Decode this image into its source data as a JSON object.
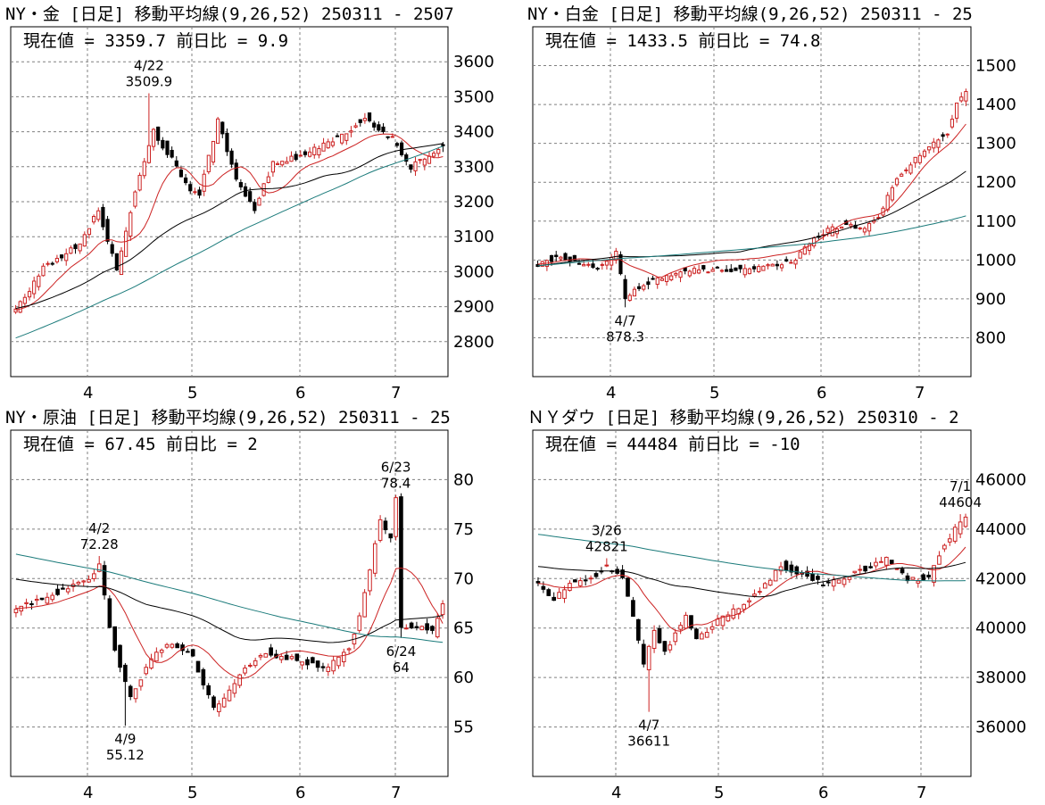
{
  "chart_data": [
    {
      "type": "candlestick",
      "title": "NY・金 [日足]  移動平均線(9,26,52)  250311 - 2507",
      "current_label": "現在値 = 3359.7  前日比 = 9.9",
      "xlabels": [
        "4",
        "5",
        "6",
        "7"
      ],
      "yticks": [
        "2800",
        "2900",
        "3000",
        "3100",
        "3200",
        "3300",
        "3400",
        "3500",
        "3600"
      ],
      "ylim": [
        2700,
        3700
      ],
      "ma_periods": [
        9,
        26,
        52
      ],
      "colors": {
        "up": "#cc2222",
        "down": "#000000",
        "ma9": "#cc2222",
        "ma26": "#000000",
        "ma52": "#1a7a7a"
      },
      "annotations": [
        {
          "label": "4/22",
          "value": "3509.9",
          "date_index": 29,
          "price": 3509.9,
          "position": "above"
        }
      ],
      "anchors": [
        [
          0,
          2890
        ],
        [
          6,
          3010
        ],
        [
          14,
          3080
        ],
        [
          18,
          3180
        ],
        [
          22,
          3000
        ],
        [
          26,
          3230
        ],
        [
          30,
          3400
        ],
        [
          34,
          3320
        ],
        [
          38,
          3230
        ],
        [
          40,
          3220
        ],
        [
          44,
          3430
        ],
        [
          48,
          3260
        ],
        [
          52,
          3180
        ],
        [
          56,
          3310
        ],
        [
          62,
          3330
        ],
        [
          70,
          3380
        ],
        [
          76,
          3440
        ],
        [
          82,
          3380
        ],
        [
          86,
          3300
        ],
        [
          90,
          3330
        ],
        [
          93,
          3359.7
        ]
      ],
      "ma9_end": 3340,
      "ma26_end": 3360,
      "ma52_end": 3365,
      "ma26_start": 2895,
      "ma52_start": 2810
    },
    {
      "type": "candlestick",
      "title": "NY・白金 [日足]  移動平均線(9,26,52)  250311 - 25",
      "current_label": "現在値 = 1433.5  前日比 = 74.8",
      "xlabels": [
        "4",
        "5",
        "6",
        "7"
      ],
      "yticks": [
        "800",
        "900",
        "1000",
        "1100",
        "1200",
        "1300",
        "1400",
        "1500"
      ],
      "ylim": [
        700,
        1600
      ],
      "ma_periods": [
        9,
        26,
        52
      ],
      "colors": {
        "up": "#cc2222",
        "down": "#000000",
        "ma9": "#cc2222",
        "ma26": "#000000",
        "ma52": "#1a7a7a"
      },
      "annotations": [
        {
          "label": "4/7",
          "value": "878.3",
          "date_index": 19,
          "price": 878.3,
          "position": "below"
        }
      ],
      "anchors": [
        [
          0,
          990
        ],
        [
          5,
          1010
        ],
        [
          9,
          995
        ],
        [
          13,
          980
        ],
        [
          17,
          1020
        ],
        [
          19,
          900
        ],
        [
          22,
          930
        ],
        [
          28,
          960
        ],
        [
          35,
          975
        ],
        [
          44,
          975
        ],
        [
          52,
          990
        ],
        [
          56,
          1000
        ],
        [
          60,
          1060
        ],
        [
          66,
          1090
        ],
        [
          70,
          1080
        ],
        [
          74,
          1110
        ],
        [
          78,
          1210
        ],
        [
          82,
          1260
        ],
        [
          86,
          1300
        ],
        [
          89,
          1330
        ],
        [
          91,
          1400
        ],
        [
          93,
          1433.5
        ]
      ],
      "ma9_end": 1340,
      "ma26_end": 1225,
      "ma52_end": 1110,
      "ma26_start": 985,
      "ma52_start": 985
    },
    {
      "type": "candlestick",
      "title": "NY・原油 [日足]  移動平均線(9,26,52)  250311 - 25",
      "current_label": "現在値 = 67.45  前日比 = 2",
      "xlabels": [
        "4",
        "5",
        "6",
        "7"
      ],
      "yticks": [
        "55",
        "60",
        "65",
        "70",
        "75",
        "80"
      ],
      "ylim": [
        50,
        85
      ],
      "ma_periods": [
        9,
        26,
        52
      ],
      "colors": {
        "up": "#cc2222",
        "down": "#000000",
        "ma9": "#cc2222",
        "ma26": "#000000",
        "ma52": "#1a7a7a"
      },
      "annotations": [
        {
          "label": "4/2",
          "value": "72.28",
          "date_index": 16,
          "price": 72.28,
          "position": "above"
        },
        {
          "label": "4/9",
          "value": "55.12",
          "date_index": 21,
          "price": 55.12,
          "position": "below"
        },
        {
          "label": "6/23",
          "value": "78.4",
          "date_index": 73,
          "price": 78.4,
          "position": "above"
        },
        {
          "label": "6/24",
          "value": "64",
          "date_index": 74,
          "price": 64,
          "position": "below"
        }
      ],
      "anchors": [
        [
          0,
          67
        ],
        [
          5,
          68
        ],
        [
          10,
          69
        ],
        [
          14,
          70
        ],
        [
          16,
          71.5
        ],
        [
          18,
          65
        ],
        [
          20,
          61
        ],
        [
          22,
          58
        ],
        [
          26,
          62
        ],
        [
          30,
          63.5
        ],
        [
          34,
          62
        ],
        [
          38,
          57
        ],
        [
          40,
          58
        ],
        [
          44,
          61
        ],
        [
          48,
          62.5
        ],
        [
          52,
          62
        ],
        [
          56,
          61.5
        ],
        [
          60,
          61
        ],
        [
          64,
          63
        ],
        [
          66,
          66
        ],
        [
          70,
          76
        ],
        [
          72,
          74
        ],
        [
          73,
          78
        ],
        [
          74,
          65
        ],
        [
          78,
          65
        ],
        [
          80,
          64.5
        ],
        [
          82,
          67.45
        ]
      ],
      "ma9_end": 66,
      "ma26_end": 66,
      "ma52_end": 63.5,
      "ma26_start": 70,
      "ma52_start": 72.5
    },
    {
      "type": "candlestick",
      "title": "ＮＹダウ [日足]  移動平均線(9,26,52)  250310 - 2",
      "current_label": "現在値 = 44484  前日比 = -10",
      "xlabels": [
        "4",
        "5",
        "6",
        "7"
      ],
      "yticks": [
        "36000",
        "38000",
        "40000",
        "42000",
        "44000",
        "46000"
      ],
      "ylim": [
        34000,
        48000
      ],
      "ma_periods": [
        9,
        26,
        52
      ],
      "colors": {
        "up": "#cc2222",
        "down": "#000000",
        "ma9": "#cc2222",
        "ma26": "#000000",
        "ma52": "#1a7a7a"
      },
      "annotations": [
        {
          "label": "3/26",
          "value": "42821",
          "date_index": 13,
          "price": 42821,
          "position": "above"
        },
        {
          "label": "4/7",
          "value": "36611",
          "date_index": 21,
          "price": 36611,
          "position": "below"
        },
        {
          "label": "7/1",
          "value": "44604",
          "date_index": 80,
          "price": 44604,
          "position": "above"
        }
      ],
      "anchors": [
        [
          0,
          41800
        ],
        [
          3,
          41200
        ],
        [
          6,
          41800
        ],
        [
          10,
          42000
        ],
        [
          13,
          42500
        ],
        [
          16,
          42000
        ],
        [
          18,
          40500
        ],
        [
          20,
          38500
        ],
        [
          22,
          40000
        ],
        [
          24,
          39000
        ],
        [
          28,
          40500
        ],
        [
          30,
          39500
        ],
        [
          34,
          40300
        ],
        [
          38,
          40800
        ],
        [
          42,
          41500
        ],
        [
          46,
          42500
        ],
        [
          50,
          42200
        ],
        [
          54,
          41800
        ],
        [
          58,
          42000
        ],
        [
          62,
          42400
        ],
        [
          66,
          42800
        ],
        [
          70,
          42000
        ],
        [
          74,
          42000
        ],
        [
          76,
          43000
        ],
        [
          79,
          44000
        ],
        [
          81,
          44484
        ]
      ],
      "ma9_end": 43400,
      "ma26_end": 42700,
      "ma52_end": 41900,
      "ma26_start": 42500,
      "ma52_start": 43800
    }
  ]
}
